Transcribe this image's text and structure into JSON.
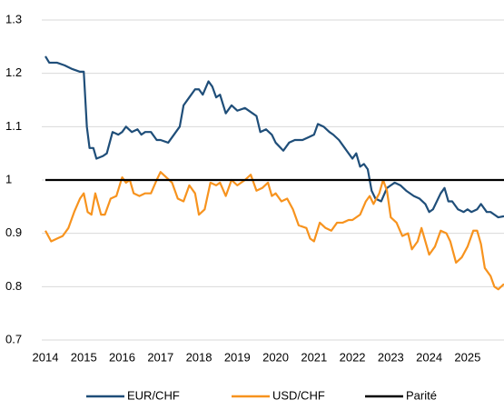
{
  "chart_data": {
    "type": "line",
    "xlim": [
      2014,
      2025.95
    ],
    "xticks": [
      2014,
      2015,
      2016,
      2017,
      2018,
      2019,
      2020,
      2021,
      2022,
      2023,
      2024,
      2025
    ],
    "ylim": [
      0.7,
      1.3
    ],
    "yticks": [
      0.7,
      0.8,
      0.9,
      1,
      1.1,
      1.2,
      1.3
    ],
    "grid": true,
    "legend": "bottom",
    "series": [
      {
        "name": "EUR/CHF",
        "color": "#1f4e79",
        "x": [
          2014.0,
          2014.1,
          2014.3,
          2014.5,
          2014.7,
          2014.9,
          2015.0,
          2015.08,
          2015.15,
          2015.25,
          2015.33,
          2015.5,
          2015.6,
          2015.75,
          2015.9,
          2016.0,
          2016.1,
          2016.25,
          2016.4,
          2016.5,
          2016.6,
          2016.75,
          2016.9,
          2017.0,
          2017.2,
          2017.4,
          2017.5,
          2017.6,
          2017.75,
          2017.9,
          2018.0,
          2018.1,
          2018.25,
          2018.35,
          2018.45,
          2018.55,
          2018.7,
          2018.85,
          2019.0,
          2019.2,
          2019.4,
          2019.5,
          2019.6,
          2019.75,
          2019.9,
          2020.0,
          2020.2,
          2020.35,
          2020.5,
          2020.7,
          2020.85,
          2021.0,
          2021.1,
          2021.25,
          2021.4,
          2021.5,
          2021.65,
          2021.8,
          2022.0,
          2022.1,
          2022.2,
          2022.3,
          2022.4,
          2022.5,
          2022.6,
          2022.75,
          2022.9,
          2023.0,
          2023.1,
          2023.25,
          2023.4,
          2023.6,
          2023.75,
          2023.9,
          2024.0,
          2024.1,
          2024.3,
          2024.4,
          2024.5,
          2024.6,
          2024.75,
          2024.9,
          2025.0,
          2025.1,
          2025.25,
          2025.35,
          2025.5,
          2025.6,
          2025.7,
          2025.8,
          2025.95
        ],
        "values": [
          1.232,
          1.22,
          1.22,
          1.215,
          1.208,
          1.203,
          1.203,
          1.1,
          1.06,
          1.06,
          1.04,
          1.045,
          1.05,
          1.09,
          1.085,
          1.09,
          1.1,
          1.09,
          1.095,
          1.085,
          1.09,
          1.09,
          1.075,
          1.075,
          1.07,
          1.09,
          1.1,
          1.14,
          1.155,
          1.17,
          1.17,
          1.16,
          1.185,
          1.175,
          1.155,
          1.16,
          1.125,
          1.14,
          1.13,
          1.135,
          1.125,
          1.12,
          1.09,
          1.095,
          1.085,
          1.07,
          1.055,
          1.07,
          1.075,
          1.075,
          1.08,
          1.085,
          1.105,
          1.1,
          1.09,
          1.085,
          1.075,
          1.06,
          1.04,
          1.05,
          1.025,
          1.03,
          1.02,
          0.98,
          0.965,
          0.96,
          0.985,
          0.99,
          0.995,
          0.99,
          0.98,
          0.97,
          0.965,
          0.955,
          0.94,
          0.945,
          0.975,
          0.985,
          0.96,
          0.96,
          0.945,
          0.94,
          0.945,
          0.94,
          0.945,
          0.955,
          0.94,
          0.94,
          0.935,
          0.93,
          0.932
        ]
      },
      {
        "name": "USD/CHF",
        "color": "#f7931e",
        "x": [
          2014.0,
          2014.15,
          2014.3,
          2014.45,
          2014.6,
          2014.75,
          2014.9,
          2015.0,
          2015.1,
          2015.2,
          2015.3,
          2015.45,
          2015.55,
          2015.7,
          2015.85,
          2016.0,
          2016.1,
          2016.2,
          2016.3,
          2016.45,
          2016.6,
          2016.75,
          2016.9,
          2017.0,
          2017.15,
          2017.3,
          2017.45,
          2017.6,
          2017.75,
          2017.9,
          2018.0,
          2018.15,
          2018.3,
          2018.45,
          2018.55,
          2018.7,
          2018.85,
          2019.0,
          2019.2,
          2019.35,
          2019.5,
          2019.65,
          2019.8,
          2019.9,
          2020.0,
          2020.15,
          2020.3,
          2020.45,
          2020.6,
          2020.8,
          2020.9,
          2021.0,
          2021.15,
          2021.3,
          2021.45,
          2021.6,
          2021.75,
          2021.9,
          2022.0,
          2022.2,
          2022.35,
          2022.45,
          2022.55,
          2022.7,
          2022.8,
          2022.9,
          2023.0,
          2023.15,
          2023.3,
          2023.45,
          2023.55,
          2023.7,
          2023.8,
          2023.9,
          2024.0,
          2024.15,
          2024.3,
          2024.45,
          2024.55,
          2024.7,
          2024.85,
          2025.0,
          2025.15,
          2025.25,
          2025.35,
          2025.45,
          2025.6,
          2025.7,
          2025.8,
          2025.95
        ],
        "values": [
          0.905,
          0.885,
          0.89,
          0.895,
          0.91,
          0.94,
          0.965,
          0.975,
          0.94,
          0.935,
          0.975,
          0.935,
          0.935,
          0.965,
          0.97,
          1.005,
          0.995,
          1.0,
          0.975,
          0.97,
          0.975,
          0.975,
          1.0,
          1.015,
          1.005,
          0.995,
          0.965,
          0.96,
          0.99,
          0.975,
          0.935,
          0.945,
          0.995,
          0.99,
          0.995,
          0.97,
          1.0,
          0.99,
          1.0,
          1.01,
          0.98,
          0.985,
          0.995,
          0.97,
          0.975,
          0.96,
          0.965,
          0.945,
          0.915,
          0.91,
          0.89,
          0.885,
          0.92,
          0.91,
          0.905,
          0.92,
          0.92,
          0.925,
          0.925,
          0.935,
          0.96,
          0.97,
          0.955,
          0.975,
          1.0,
          0.98,
          0.93,
          0.92,
          0.895,
          0.9,
          0.87,
          0.885,
          0.91,
          0.885,
          0.86,
          0.875,
          0.905,
          0.9,
          0.885,
          0.845,
          0.855,
          0.875,
          0.905,
          0.905,
          0.88,
          0.835,
          0.82,
          0.8,
          0.795,
          0.805
        ]
      },
      {
        "name": "Parité",
        "color": "#000000",
        "x": [
          2014,
          2025.95
        ],
        "values": [
          1,
          1
        ]
      }
    ]
  }
}
